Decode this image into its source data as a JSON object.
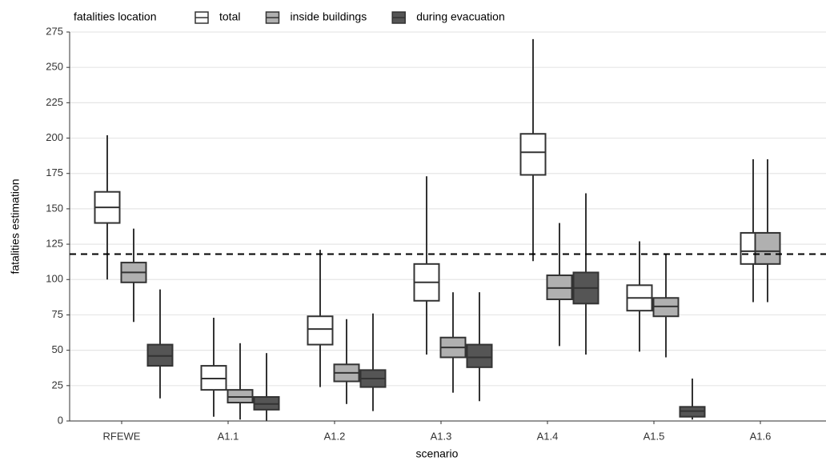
{
  "chart_data": {
    "type": "box",
    "x_label": "scenario",
    "y_label": "fatalities estimation",
    "legend_title": "fatalities location",
    "legend_position": "top",
    "categories": [
      "RFEWE",
      "A1.1",
      "A1.2",
      "A1.3",
      "A1.4",
      "A1.5",
      "A1.6"
    ],
    "ylim": [
      0,
      275
    ],
    "yticks": [
      0,
      25,
      50,
      75,
      100,
      125,
      150,
      175,
      200,
      225,
      250,
      275
    ],
    "grid": true,
    "reference_line": 118,
    "series": [
      {
        "name": "total",
        "color": "#ffffff",
        "stats": [
          {
            "whislo": 100,
            "q1": 140,
            "med": 151,
            "q3": 162,
            "whishi": 202
          },
          {
            "whislo": 3,
            "q1": 22,
            "med": 30,
            "q3": 39,
            "whishi": 73
          },
          {
            "whislo": 24,
            "q1": 54,
            "med": 65,
            "q3": 74,
            "whishi": 121
          },
          {
            "whislo": 47,
            "q1": 85,
            "med": 98,
            "q3": 111,
            "whishi": 173
          },
          {
            "whislo": 113,
            "q1": 174,
            "med": 190,
            "q3": 203,
            "whishi": 270
          },
          {
            "whislo": 49,
            "q1": 78,
            "med": 87,
            "q3": 96,
            "whishi": 127
          },
          {
            "whislo": 84,
            "q1": 111,
            "med": 120,
            "q3": 133,
            "whishi": 185
          }
        ]
      },
      {
        "name": "inside buildings",
        "color": "#b0b0b0",
        "stats": [
          {
            "whislo": 70,
            "q1": 98,
            "med": 105,
            "q3": 112,
            "whishi": 136
          },
          {
            "whislo": 1,
            "q1": 13,
            "med": 17,
            "q3": 22,
            "whishi": 55
          },
          {
            "whislo": 12,
            "q1": 28,
            "med": 34,
            "q3": 40,
            "whishi": 72
          },
          {
            "whislo": 20,
            "q1": 45,
            "med": 52,
            "q3": 59,
            "whishi": 91
          },
          {
            "whislo": 53,
            "q1": 86,
            "med": 94,
            "q3": 103,
            "whishi": 140
          },
          {
            "whislo": 45,
            "q1": 74,
            "med": 81,
            "q3": 87,
            "whishi": 118
          },
          {
            "whislo": 84,
            "q1": 111,
            "med": 120,
            "q3": 133,
            "whishi": 185
          }
        ]
      },
      {
        "name": "during evacuation",
        "color": "#555555",
        "stats": [
          {
            "whislo": 16,
            "q1": 39,
            "med": 46,
            "q3": 54,
            "whishi": 93
          },
          {
            "whislo": 0,
            "q1": 8,
            "med": 12,
            "q3": 17,
            "whishi": 48
          },
          {
            "whislo": 7,
            "q1": 24,
            "med": 30,
            "q3": 36,
            "whishi": 76
          },
          {
            "whislo": 14,
            "q1": 38,
            "med": 45,
            "q3": 54,
            "whishi": 91
          },
          {
            "whislo": 47,
            "q1": 83,
            "med": 94,
            "q3": 105,
            "whishi": 161
          },
          {
            "whislo": 1,
            "q1": 3,
            "med": 7,
            "q3": 10,
            "whishi": 30
          },
          null
        ]
      }
    ]
  }
}
